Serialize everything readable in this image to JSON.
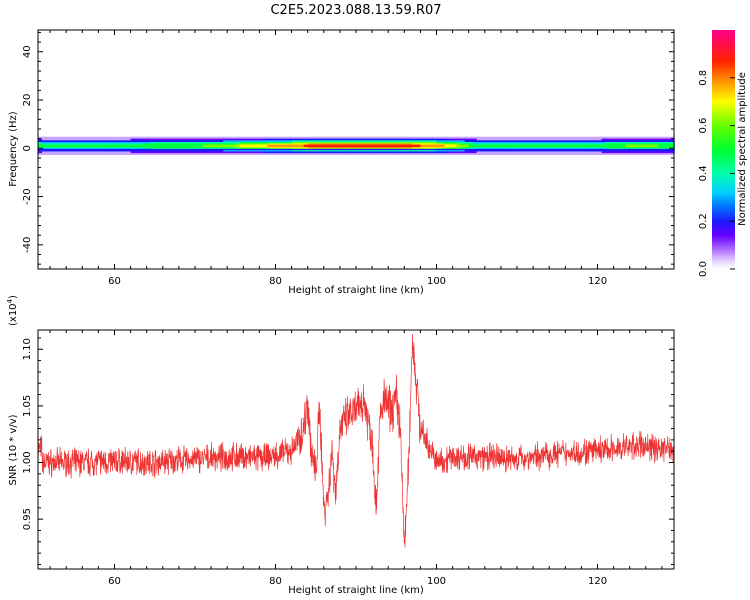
{
  "title": "C2E5.2023.088.13.59.R07",
  "chart_data": [
    {
      "type": "heatmap",
      "xlabel": "Height of straight line (km)",
      "ylabel": "Frequency (Hz)",
      "xlim": [
        50.5,
        129.5
      ],
      "ylim": [
        -50,
        49
      ],
      "xticks": [
        60,
        80,
        100,
        120
      ],
      "yticks": [
        40,
        20,
        0,
        -20,
        -40
      ],
      "colorbar": {
        "label": "Normalized spectral amplitude",
        "range": [
          0,
          1
        ],
        "ticks": [
          0.0,
          0.2,
          0.4,
          0.6,
          0.8
        ],
        "tick_labels": [
          "0.0",
          "0.2",
          "0.4",
          "0.6",
          "0.8"
        ]
      },
      "band": {
        "center_frequency_hz": 1,
        "description_points": [
          {
            "x": 51,
            "amp": 0.5
          },
          {
            "x": 60,
            "amp": 0.55
          },
          {
            "x": 70,
            "amp": 0.6
          },
          {
            "x": 75,
            "amp": 0.7
          },
          {
            "x": 80,
            "amp": 0.85
          },
          {
            "x": 85,
            "amp": 0.95
          },
          {
            "x": 90,
            "amp": 0.95
          },
          {
            "x": 95,
            "amp": 0.95
          },
          {
            "x": 100,
            "amp": 0.9
          },
          {
            "x": 105,
            "amp": 0.55
          },
          {
            "x": 110,
            "amp": 0.5
          },
          {
            "x": 120,
            "amp": 0.55
          },
          {
            "x": 125,
            "amp": 0.65
          },
          {
            "x": 129,
            "amp": 0.6
          }
        ]
      }
    },
    {
      "type": "line",
      "xlabel": "Height of straight line (km)",
      "ylabel": "SNR (10 * v/v)",
      "y_multiplier_label": "(x10",
      "y_multiplier_exp": "4",
      "y_multiplier_close": ")",
      "xlim": [
        50.5,
        129.5
      ],
      "ylim": [
        0.906,
        1.117
      ],
      "xticks": [
        60,
        80,
        100,
        120
      ],
      "yticks": [
        0.95,
        1.0,
        1.05,
        1.1
      ],
      "ytick_labels": [
        "0.95",
        "1.00",
        "1.05",
        "1.10"
      ],
      "color": "#ee3333",
      "series": [
        {
          "x": [
            51,
            55,
            60,
            65,
            70,
            75,
            78,
            80,
            82,
            83.5,
            84,
            84.5,
            85,
            85.5,
            86,
            86.5,
            87,
            87.5,
            88,
            89,
            90,
            91,
            92,
            92.5,
            93,
            93.5,
            94,
            94.5,
            95,
            95.5,
            96,
            96.5,
            97,
            98,
            100,
            102,
            105,
            110,
            115,
            120,
            125,
            129
          ],
          "y": [
            1.0,
            1.0,
            1.001,
            1.0,
            1.003,
            1.005,
            1.004,
            1.006,
            1.01,
            1.03,
            1.055,
            1.005,
            0.99,
            1.05,
            0.96,
            0.97,
            1.01,
            0.975,
            1.03,
            1.04,
            1.045,
            1.055,
            1.02,
            0.96,
            1.04,
            1.055,
            1.05,
            1.045,
            1.06,
            1.03,
            0.925,
            0.99,
            1.11,
            1.03,
            1.0,
            1.005,
            1.005,
            1.003,
            1.008,
            1.01,
            1.015,
            1.012
          ]
        }
      ]
    }
  ]
}
